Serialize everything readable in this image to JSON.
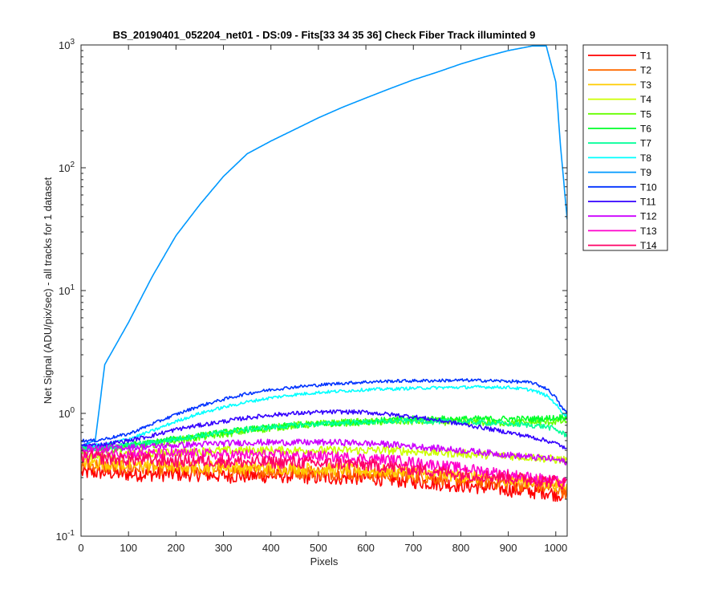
{
  "chart_data": {
    "type": "line",
    "title": "BS_20190401_052204_net01 - DS:09 - Fits[33  34  35  36]   Check Fiber     Track illuminted 9",
    "xlabel": "Pixels",
    "ylabel": "Net Signal (ADU/pix/sec) - all tracks for 1 dataset",
    "xlim": [
      0,
      1024
    ],
    "ylim": [
      0.1,
      1000
    ],
    "yscale": "log",
    "grid": false,
    "legend_position": "outside-right",
    "x_ticks": [
      0,
      100,
      200,
      300,
      400,
      500,
      600,
      700,
      800,
      900,
      1000
    ],
    "y_ticks": [
      {
        "value": 0.1,
        "base": "10",
        "exp": "-1"
      },
      {
        "value": 1,
        "base": "10",
        "exp": "0"
      },
      {
        "value": 10,
        "base": "10",
        "exp": "1"
      },
      {
        "value": 100,
        "base": "10",
        "exp": "2"
      },
      {
        "value": 1000,
        "base": "10",
        "exp": "3"
      }
    ],
    "x": [
      1,
      30,
      50,
      100,
      150,
      200,
      250,
      300,
      350,
      400,
      450,
      500,
      550,
      600,
      650,
      700,
      750,
      800,
      850,
      900,
      950,
      980,
      1000,
      1010,
      1024
    ],
    "series": [
      {
        "name": "T1",
        "color": "#ff0000",
        "noise": 0.14,
        "values": [
          0.33,
          0.33,
          0.33,
          0.32,
          0.32,
          0.32,
          0.32,
          0.31,
          0.31,
          0.31,
          0.31,
          0.3,
          0.3,
          0.3,
          0.29,
          0.28,
          0.27,
          0.26,
          0.25,
          0.24,
          0.23,
          0.23,
          0.22,
          0.22,
          0.21
        ]
      },
      {
        "name": "T2",
        "color": "#ff6a00",
        "noise": 0.14,
        "values": [
          0.38,
          0.38,
          0.37,
          0.36,
          0.36,
          0.35,
          0.35,
          0.35,
          0.34,
          0.34,
          0.34,
          0.33,
          0.33,
          0.32,
          0.32,
          0.31,
          0.3,
          0.29,
          0.28,
          0.27,
          0.26,
          0.25,
          0.25,
          0.24,
          0.23
        ]
      },
      {
        "name": "T3",
        "color": "#ffcc00",
        "noise": 0.12,
        "values": [
          0.4,
          0.4,
          0.39,
          0.38,
          0.38,
          0.37,
          0.37,
          0.37,
          0.36,
          0.36,
          0.36,
          0.35,
          0.35,
          0.34,
          0.34,
          0.33,
          0.32,
          0.31,
          0.3,
          0.29,
          0.28,
          0.27,
          0.26,
          0.26,
          0.25
        ]
      },
      {
        "name": "T4",
        "color": "#ccff00",
        "noise": 0.08,
        "values": [
          0.45,
          0.45,
          0.45,
          0.46,
          0.47,
          0.48,
          0.49,
          0.5,
          0.5,
          0.5,
          0.5,
          0.5,
          0.5,
          0.5,
          0.5,
          0.49,
          0.48,
          0.47,
          0.46,
          0.45,
          0.44,
          0.43,
          0.42,
          0.42,
          0.41
        ]
      },
      {
        "name": "T5",
        "color": "#66ff00",
        "noise": 0.07,
        "values": [
          0.5,
          0.5,
          0.51,
          0.53,
          0.56,
          0.6,
          0.64,
          0.68,
          0.72,
          0.76,
          0.8,
          0.82,
          0.84,
          0.85,
          0.86,
          0.86,
          0.86,
          0.85,
          0.84,
          0.84,
          0.84,
          0.85,
          0.86,
          0.86,
          0.87
        ]
      },
      {
        "name": "T6",
        "color": "#00ff2a",
        "noise": 0.06,
        "values": [
          0.52,
          0.52,
          0.53,
          0.55,
          0.58,
          0.62,
          0.66,
          0.7,
          0.74,
          0.77,
          0.8,
          0.82,
          0.84,
          0.86,
          0.88,
          0.9,
          0.9,
          0.9,
          0.9,
          0.9,
          0.9,
          0.91,
          0.92,
          0.93,
          0.94
        ]
      },
      {
        "name": "T7",
        "color": "#00ff99",
        "noise": 0.05,
        "values": [
          0.52,
          0.52,
          0.53,
          0.55,
          0.58,
          0.62,
          0.66,
          0.7,
          0.74,
          0.77,
          0.8,
          0.82,
          0.84,
          0.85,
          0.86,
          0.87,
          0.86,
          0.85,
          0.84,
          0.82,
          0.8,
          0.78,
          0.74,
          0.7,
          0.66
        ]
      },
      {
        "name": "T8",
        "color": "#00ffff",
        "noise": 0.03,
        "values": [
          0.55,
          0.55,
          0.56,
          0.62,
          0.72,
          0.86,
          1.0,
          1.12,
          1.24,
          1.34,
          1.42,
          1.48,
          1.52,
          1.56,
          1.58,
          1.6,
          1.62,
          1.63,
          1.64,
          1.63,
          1.55,
          1.4,
          1.2,
          1.05,
          0.95
        ]
      },
      {
        "name": "T9",
        "color": "#0099ff",
        "noise": 0.0,
        "values": [
          0.55,
          0.6,
          2.5,
          5.5,
          13,
          28,
          50,
          85,
          130,
          165,
          205,
          255,
          310,
          370,
          440,
          520,
          600,
          700,
          800,
          900,
          980,
          980,
          500,
          150,
          38
        ]
      },
      {
        "name": "T10",
        "color": "#0033ff",
        "noise": 0.03,
        "values": [
          0.6,
          0.6,
          0.62,
          0.68,
          0.82,
          0.98,
          1.15,
          1.3,
          1.45,
          1.56,
          1.64,
          1.7,
          1.76,
          1.8,
          1.83,
          1.84,
          1.85,
          1.86,
          1.85,
          1.83,
          1.78,
          1.6,
          1.35,
          1.15,
          1.0
        ]
      },
      {
        "name": "T11",
        "color": "#3300ff",
        "noise": 0.04,
        "values": [
          0.55,
          0.55,
          0.56,
          0.6,
          0.66,
          0.74,
          0.8,
          0.86,
          0.92,
          0.97,
          1.0,
          1.02,
          1.03,
          1.02,
          0.98,
          0.94,
          0.88,
          0.82,
          0.76,
          0.7,
          0.64,
          0.6,
          0.57,
          0.55,
          0.5
        ]
      },
      {
        "name": "T12",
        "color": "#cc00ff",
        "noise": 0.06,
        "values": [
          0.52,
          0.52,
          0.52,
          0.53,
          0.54,
          0.55,
          0.56,
          0.57,
          0.58,
          0.58,
          0.58,
          0.58,
          0.58,
          0.57,
          0.56,
          0.54,
          0.52,
          0.5,
          0.48,
          0.46,
          0.44,
          0.43,
          0.42,
          0.41,
          0.4
        ]
      },
      {
        "name": "T13",
        "color": "#ff00cc",
        "noise": 0.1,
        "values": [
          0.48,
          0.48,
          0.48,
          0.47,
          0.47,
          0.47,
          0.47,
          0.46,
          0.46,
          0.46,
          0.45,
          0.45,
          0.44,
          0.43,
          0.42,
          0.4,
          0.38,
          0.36,
          0.34,
          0.32,
          0.3,
          0.29,
          0.28,
          0.28,
          0.27
        ]
      },
      {
        "name": "T14",
        "color": "#ff0066",
        "noise": 0.12,
        "values": [
          0.44,
          0.44,
          0.43,
          0.42,
          0.42,
          0.41,
          0.41,
          0.41,
          0.4,
          0.4,
          0.4,
          0.39,
          0.39,
          0.38,
          0.37,
          0.35,
          0.34,
          0.32,
          0.31,
          0.3,
          0.29,
          0.28,
          0.28,
          0.27,
          0.27
        ]
      }
    ]
  }
}
